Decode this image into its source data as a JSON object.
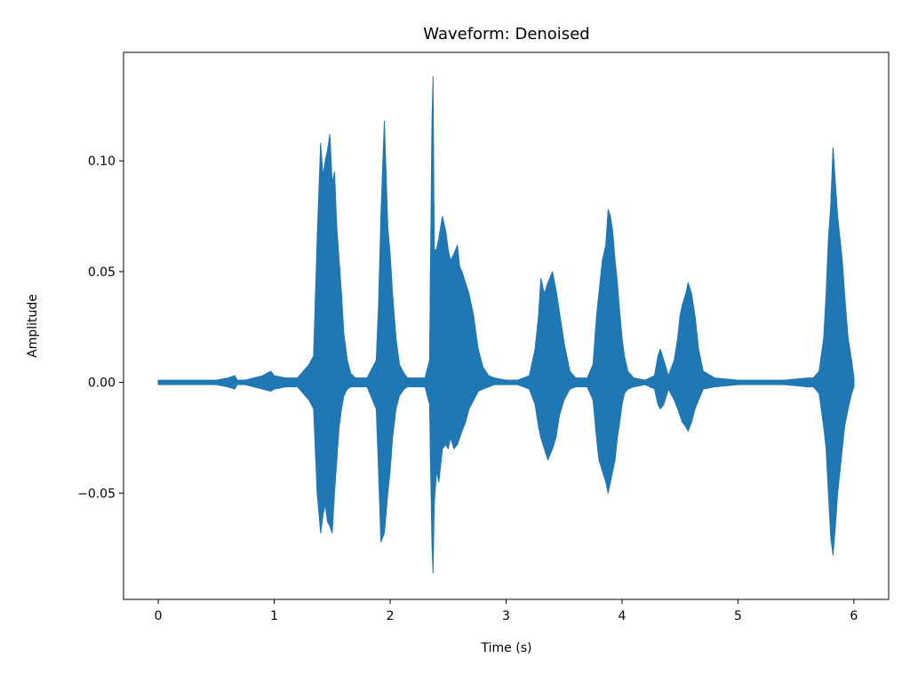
{
  "chart_data": {
    "type": "line",
    "title": "Waveform: Denoised",
    "xlabel": "Time (s)",
    "ylabel": "Amplitude",
    "xlim": [
      -0.3,
      6.3
    ],
    "ylim": [
      -0.098,
      0.149
    ],
    "xticks": [
      0,
      1,
      2,
      3,
      4,
      5,
      6
    ],
    "xtick_labels": [
      "0",
      "1",
      "2",
      "3",
      "4",
      "5",
      "6"
    ],
    "yticks": [
      -0.05,
      0.0,
      0.05,
      0.1
    ],
    "ytick_labels": [
      "−0.05",
      "0.00",
      "0.05",
      "0.10"
    ],
    "grid": false,
    "line_color": "#1f77b4",
    "series": [
      {
        "x": [
          0.0,
          0.1,
          0.2,
          0.3,
          0.4,
          0.5,
          0.6,
          0.66,
          0.68,
          0.75,
          0.9,
          0.97,
          1.0,
          1.1,
          1.2,
          1.3,
          1.34,
          1.37,
          1.4,
          1.42,
          1.44,
          1.46,
          1.48,
          1.5,
          1.52,
          1.54,
          1.56,
          1.58,
          1.6,
          1.63,
          1.66,
          1.7,
          1.8,
          1.88,
          1.9,
          1.92,
          1.95,
          1.98,
          2.0,
          2.02,
          2.05,
          2.08,
          2.12,
          2.15,
          2.2,
          2.3,
          2.34,
          2.36,
          2.37,
          2.38,
          2.4,
          2.42,
          2.45,
          2.48,
          2.5,
          2.52,
          2.55,
          2.58,
          2.6,
          2.62,
          2.65,
          2.68,
          2.7,
          2.72,
          2.74,
          2.76,
          2.8,
          2.85,
          2.9,
          3.0,
          3.1,
          3.2,
          3.25,
          3.28,
          3.3,
          3.33,
          3.36,
          3.4,
          3.43,
          3.46,
          3.5,
          3.55,
          3.6,
          3.7,
          3.75,
          3.78,
          3.8,
          3.83,
          3.86,
          3.88,
          3.9,
          3.92,
          3.94,
          3.96,
          3.98,
          4.0,
          4.02,
          4.05,
          4.1,
          4.2,
          4.28,
          4.31,
          4.33,
          4.36,
          4.4,
          4.45,
          4.48,
          4.5,
          4.52,
          4.55,
          4.57,
          4.6,
          4.63,
          4.66,
          4.7,
          4.8,
          5.0,
          5.2,
          5.4,
          5.6,
          5.65,
          5.7,
          5.74,
          5.76,
          5.78,
          5.8,
          5.82,
          5.84,
          5.86,
          5.88,
          5.9,
          5.92,
          5.95,
          5.98,
          6.0
        ],
        "upper": [
          0.001,
          0.001,
          0.001,
          0.001,
          0.001,
          0.001,
          0.002,
          0.003,
          0.001,
          0.001,
          0.003,
          0.005,
          0.003,
          0.002,
          0.002,
          0.008,
          0.012,
          0.065,
          0.108,
          0.093,
          0.1,
          0.105,
          0.112,
          0.09,
          0.095,
          0.07,
          0.055,
          0.04,
          0.022,
          0.01,
          0.004,
          0.002,
          0.002,
          0.01,
          0.035,
          0.075,
          0.118,
          0.07,
          0.058,
          0.04,
          0.02,
          0.008,
          0.004,
          0.002,
          0.002,
          0.002,
          0.01,
          0.115,
          0.138,
          0.06,
          0.06,
          0.065,
          0.075,
          0.068,
          0.06,
          0.055,
          0.058,
          0.062,
          0.052,
          0.05,
          0.045,
          0.04,
          0.035,
          0.03,
          0.022,
          0.015,
          0.007,
          0.003,
          0.002,
          0.001,
          0.001,
          0.003,
          0.015,
          0.03,
          0.047,
          0.04,
          0.045,
          0.05,
          0.042,
          0.032,
          0.018,
          0.005,
          0.002,
          0.002,
          0.008,
          0.03,
          0.04,
          0.055,
          0.062,
          0.078,
          0.075,
          0.068,
          0.055,
          0.045,
          0.032,
          0.02,
          0.012,
          0.005,
          0.002,
          0.001,
          0.003,
          0.012,
          0.015,
          0.01,
          0.003,
          0.01,
          0.02,
          0.03,
          0.035,
          0.04,
          0.045,
          0.04,
          0.03,
          0.015,
          0.005,
          0.002,
          0.001,
          0.001,
          0.001,
          0.002,
          0.002,
          0.005,
          0.02,
          0.04,
          0.065,
          0.08,
          0.106,
          0.09,
          0.075,
          0.065,
          0.055,
          0.04,
          0.02,
          0.01,
          0.002
        ],
        "lower": [
          -0.001,
          -0.001,
          -0.001,
          -0.001,
          -0.001,
          -0.001,
          -0.002,
          -0.003,
          -0.001,
          -0.001,
          -0.003,
          -0.004,
          -0.003,
          -0.002,
          -0.002,
          -0.008,
          -0.012,
          -0.05,
          -0.068,
          -0.06,
          -0.055,
          -0.063,
          -0.065,
          -0.068,
          -0.05,
          -0.035,
          -0.02,
          -0.012,
          -0.006,
          -0.003,
          -0.002,
          -0.002,
          -0.002,
          -0.012,
          -0.04,
          -0.072,
          -0.068,
          -0.05,
          -0.04,
          -0.025,
          -0.012,
          -0.006,
          -0.003,
          -0.002,
          -0.002,
          -0.002,
          -0.01,
          -0.072,
          -0.086,
          -0.055,
          -0.04,
          -0.045,
          -0.03,
          -0.028,
          -0.03,
          -0.025,
          -0.03,
          -0.028,
          -0.025,
          -0.022,
          -0.018,
          -0.012,
          -0.01,
          -0.008,
          -0.006,
          -0.004,
          -0.003,
          -0.002,
          -0.001,
          -0.001,
          -0.001,
          -0.003,
          -0.01,
          -0.02,
          -0.025,
          -0.03,
          -0.035,
          -0.03,
          -0.025,
          -0.015,
          -0.008,
          -0.003,
          -0.002,
          -0.002,
          -0.008,
          -0.025,
          -0.035,
          -0.04,
          -0.045,
          -0.05,
          -0.045,
          -0.04,
          -0.035,
          -0.025,
          -0.018,
          -0.01,
          -0.005,
          -0.003,
          -0.002,
          -0.001,
          -0.003,
          -0.01,
          -0.012,
          -0.01,
          -0.003,
          -0.008,
          -0.012,
          -0.015,
          -0.018,
          -0.02,
          -0.022,
          -0.018,
          -0.012,
          -0.008,
          -0.003,
          -0.002,
          -0.001,
          -0.001,
          -0.001,
          -0.002,
          -0.002,
          -0.005,
          -0.02,
          -0.03,
          -0.05,
          -0.07,
          -0.078,
          -0.065,
          -0.05,
          -0.04,
          -0.03,
          -0.02,
          -0.012,
          -0.005,
          -0.002
        ]
      }
    ]
  }
}
